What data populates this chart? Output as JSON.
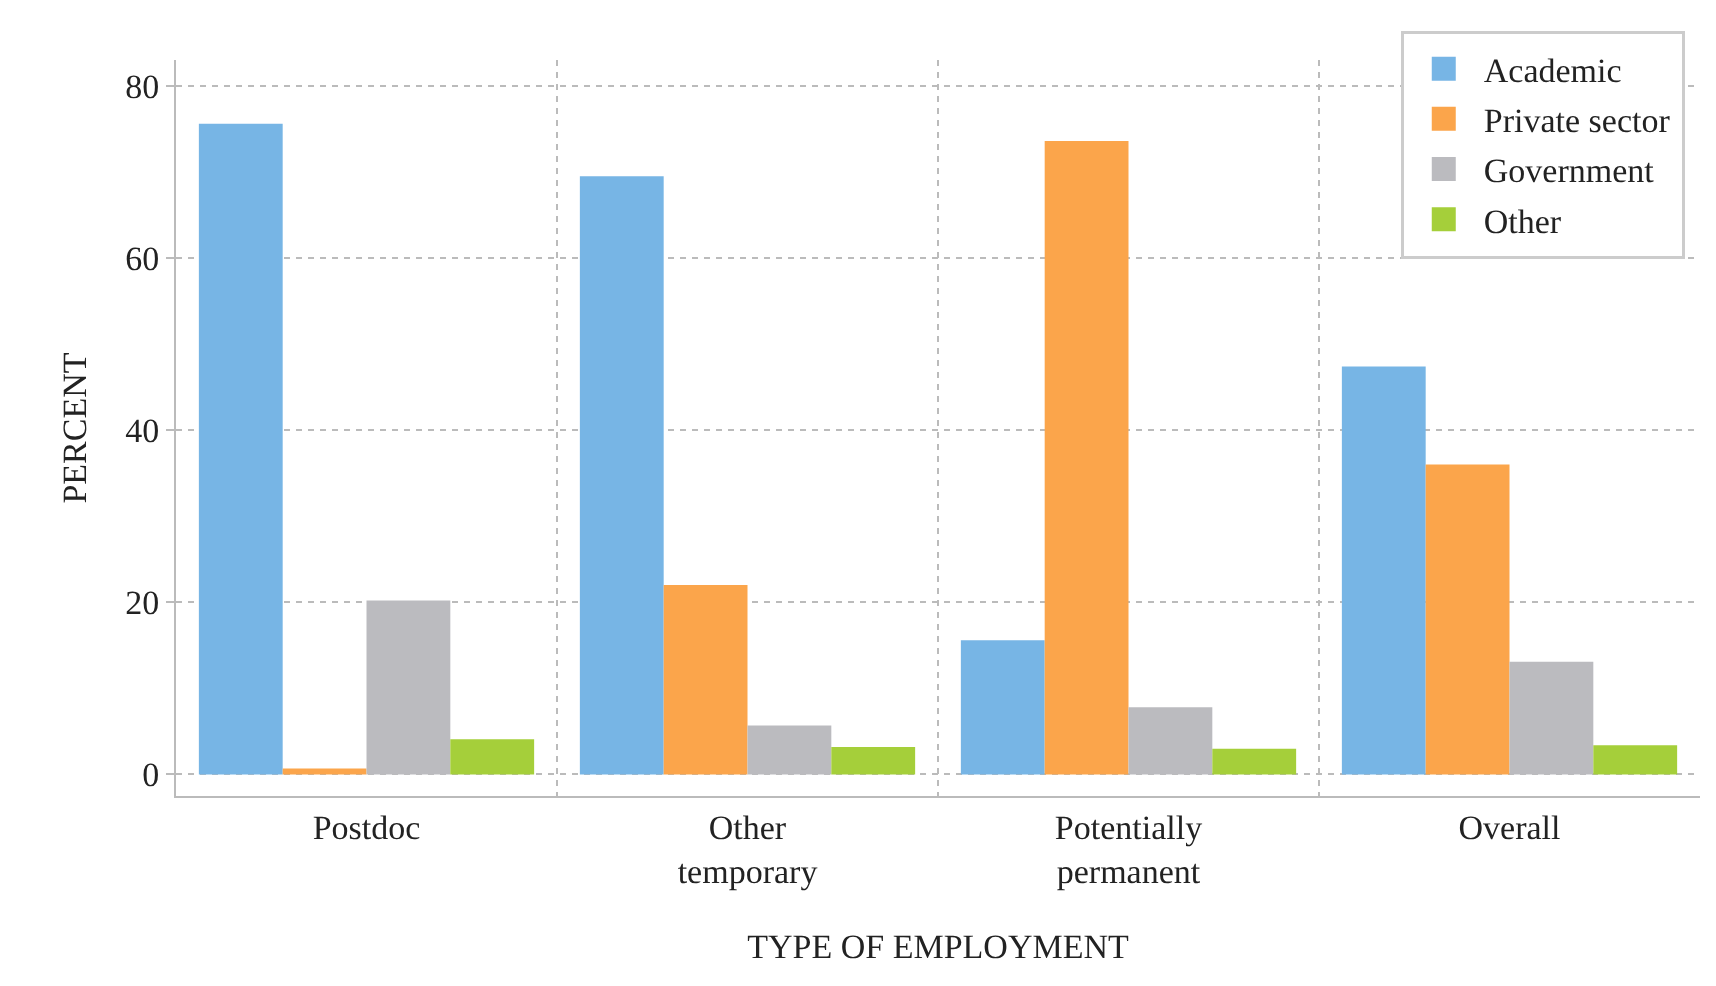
{
  "chart_data": {
    "type": "bar",
    "xlabel": "TYPE OF EMPLOYMENT",
    "ylabel": "PERCENT",
    "categories": [
      "Postdoc",
      "Other\ntemporary",
      "Potentially\npermanent",
      "Overall"
    ],
    "series": [
      {
        "name": "Academic",
        "color": "#77b5e5",
        "values": [
          75.6,
          69.5,
          15.6,
          47.4
        ]
      },
      {
        "name": "Private sector",
        "color": "#fba54b",
        "values": [
          0.7,
          22.0,
          73.6,
          36.0
        ]
      },
      {
        "name": "Government",
        "color": "#bbbbbf",
        "values": [
          20.2,
          5.7,
          7.8,
          13.1
        ]
      },
      {
        "name": "Other",
        "color": "#a5cf3a",
        "values": [
          4.1,
          3.2,
          3.0,
          3.4
        ]
      }
    ],
    "ylim": [
      -2.5,
      83
    ],
    "yticks": [
      0,
      20,
      40,
      60,
      80
    ],
    "grid": true,
    "legend": "top right"
  }
}
